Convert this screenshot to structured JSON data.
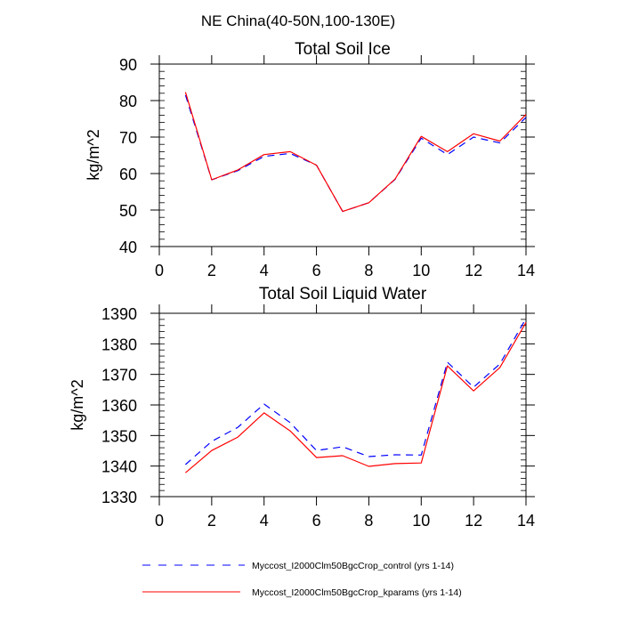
{
  "chart_data": [
    {
      "type": "line",
      "suptitle": "NE China(40-50N,100-130E)",
      "title": "Total Soil Ice",
      "xlabel": "",
      "ylabel": "kg/m^2",
      "xlim": [
        0,
        14
      ],
      "ylim": [
        40,
        90
      ],
      "xticks": [
        0,
        2,
        4,
        6,
        8,
        10,
        12,
        14
      ],
      "yticks": [
        40,
        50,
        60,
        70,
        80,
        90
      ],
      "grid": false,
      "x": [
        1,
        2,
        3,
        4,
        5,
        6,
        7,
        8,
        9,
        10,
        11,
        12,
        13,
        14
      ],
      "series": [
        {
          "name": "Myccost_I2000Clm50BgcCrop_control (yrs 1-14)",
          "color": "#0000ff",
          "style": "dashed",
          "values": [
            81.5,
            58.3,
            60.8,
            64.7,
            65.5,
            62.3,
            49.6,
            52.0,
            58.4,
            69.7,
            65.2,
            70.0,
            68.4,
            75.4
          ]
        },
        {
          "name": "Myccost_I2000Clm50BgcCrop_kparams (yrs 1-14)",
          "color": "#ff0000",
          "style": "solid",
          "values": [
            82.3,
            58.3,
            61.0,
            65.2,
            66.0,
            62.3,
            49.6,
            52.0,
            58.5,
            70.2,
            66.0,
            70.9,
            68.9,
            76.2
          ]
        }
      ]
    },
    {
      "type": "line",
      "title": "Total Soil Liquid Water",
      "xlabel": "",
      "ylabel": "kg/m^2",
      "xlim": [
        0,
        14
      ],
      "ylim": [
        1330,
        1390
      ],
      "xticks": [
        0,
        2,
        4,
        6,
        8,
        10,
        12,
        14
      ],
      "yticks": [
        1330,
        1340,
        1350,
        1360,
        1370,
        1380,
        1390
      ],
      "grid": false,
      "x": [
        1,
        2,
        3,
        4,
        5,
        6,
        7,
        8,
        9,
        10,
        11,
        12,
        13,
        14
      ],
      "series": [
        {
          "name": "Myccost_I2000Clm50BgcCrop_control (yrs 1-14)",
          "color": "#0000ff",
          "style": "dashed",
          "values": [
            1340.5,
            1348.1,
            1352.7,
            1360.3,
            1354.2,
            1345.1,
            1346.3,
            1343.1,
            1343.7,
            1343.6,
            1374.0,
            1365.8,
            1373.4,
            1388.3
          ]
        },
        {
          "name": "Myccost_I2000Clm50BgcCrop_kparams (yrs 1-14)",
          "color": "#ff0000",
          "style": "solid",
          "values": [
            1337.8,
            1345.1,
            1349.5,
            1357.4,
            1351.5,
            1342.8,
            1343.4,
            1339.9,
            1340.8,
            1341.0,
            1372.8,
            1364.6,
            1372.2,
            1387.0
          ]
        }
      ]
    }
  ],
  "legend": {
    "placement": "bottom",
    "items": [
      {
        "label": "Myccost_I2000Clm50BgcCrop_control (yrs 1-14)",
        "color": "#0000ff",
        "style": "dashed"
      },
      {
        "label": "Myccost_I2000Clm50BgcCrop_kparams (yrs 1-14)",
        "color": "#ff0000",
        "style": "solid"
      }
    ]
  }
}
